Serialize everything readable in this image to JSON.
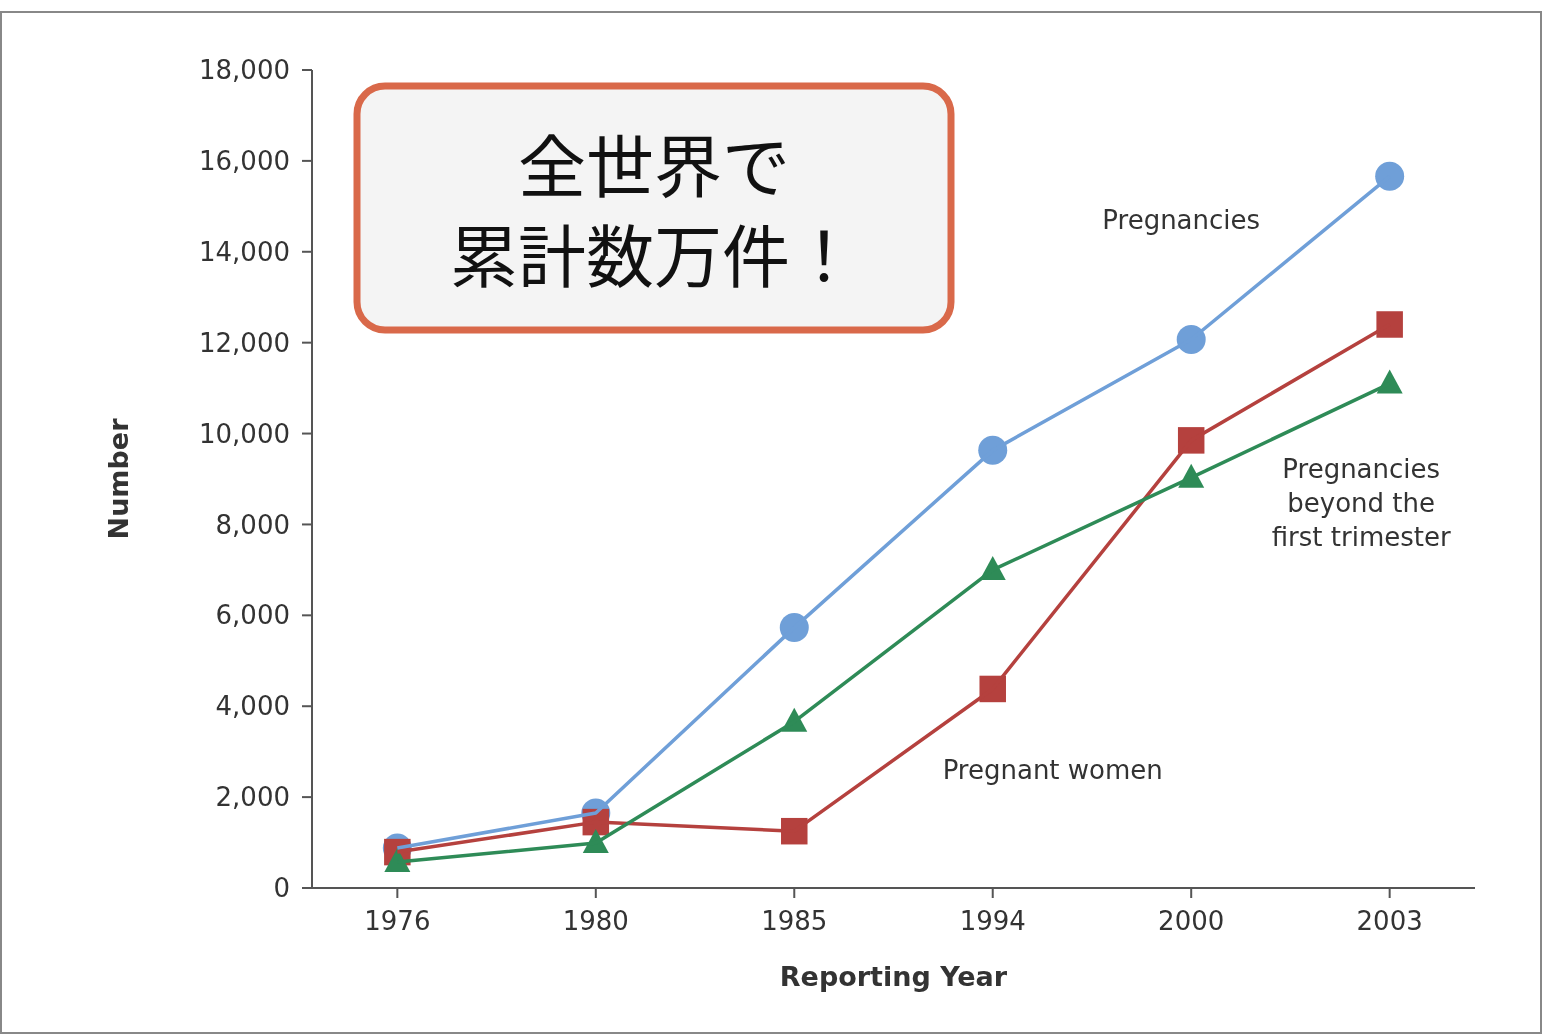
{
  "chart_data": {
    "type": "line",
    "xlabel": "Reporting Year",
    "ylabel": "Number",
    "categories": [
      "1976",
      "1980",
      "1985",
      "1994",
      "2000",
      "2003"
    ],
    "series": [
      {
        "name": "Pregnancies",
        "color": "#6f9fd8",
        "marker": "circle",
        "values": [
          880,
          1650,
          5730,
          9630,
          12070,
          15660
        ]
      },
      {
        "name": "Pregnant women",
        "color": "#b5413e",
        "marker": "square",
        "values": [
          790,
          1450,
          1250,
          4380,
          9850,
          12400
        ]
      },
      {
        "name": "Pregnancies beyond the first trimester",
        "color": "#2e8b57",
        "marker": "triangle",
        "values": [
          570,
          990,
          3660,
          7000,
          9030,
          11100
        ]
      }
    ],
    "ylim": [
      0,
      18000
    ],
    "yticks": [
      0,
      {
        "value": 2000,
        "label": "2,000"
      },
      {
        "value": 4000,
        "label": "4,000"
      },
      {
        "value": 6000,
        "label": "6,000"
      },
      {
        "value": 8000,
        "label": "8,000"
      },
      {
        "value": 10000,
        "label": "10,000"
      },
      {
        "value": 12000,
        "label": "12,000"
      },
      {
        "value": 14000,
        "label": "14,000"
      },
      {
        "value": 16000,
        "label": "16,000"
      },
      {
        "value": 18000,
        "label": "18,000"
      }
    ],
    "grid": false,
    "legend": false,
    "line_style": "solid",
    "annotations": [
      "全世界で累計数万件！"
    ]
  }
}
